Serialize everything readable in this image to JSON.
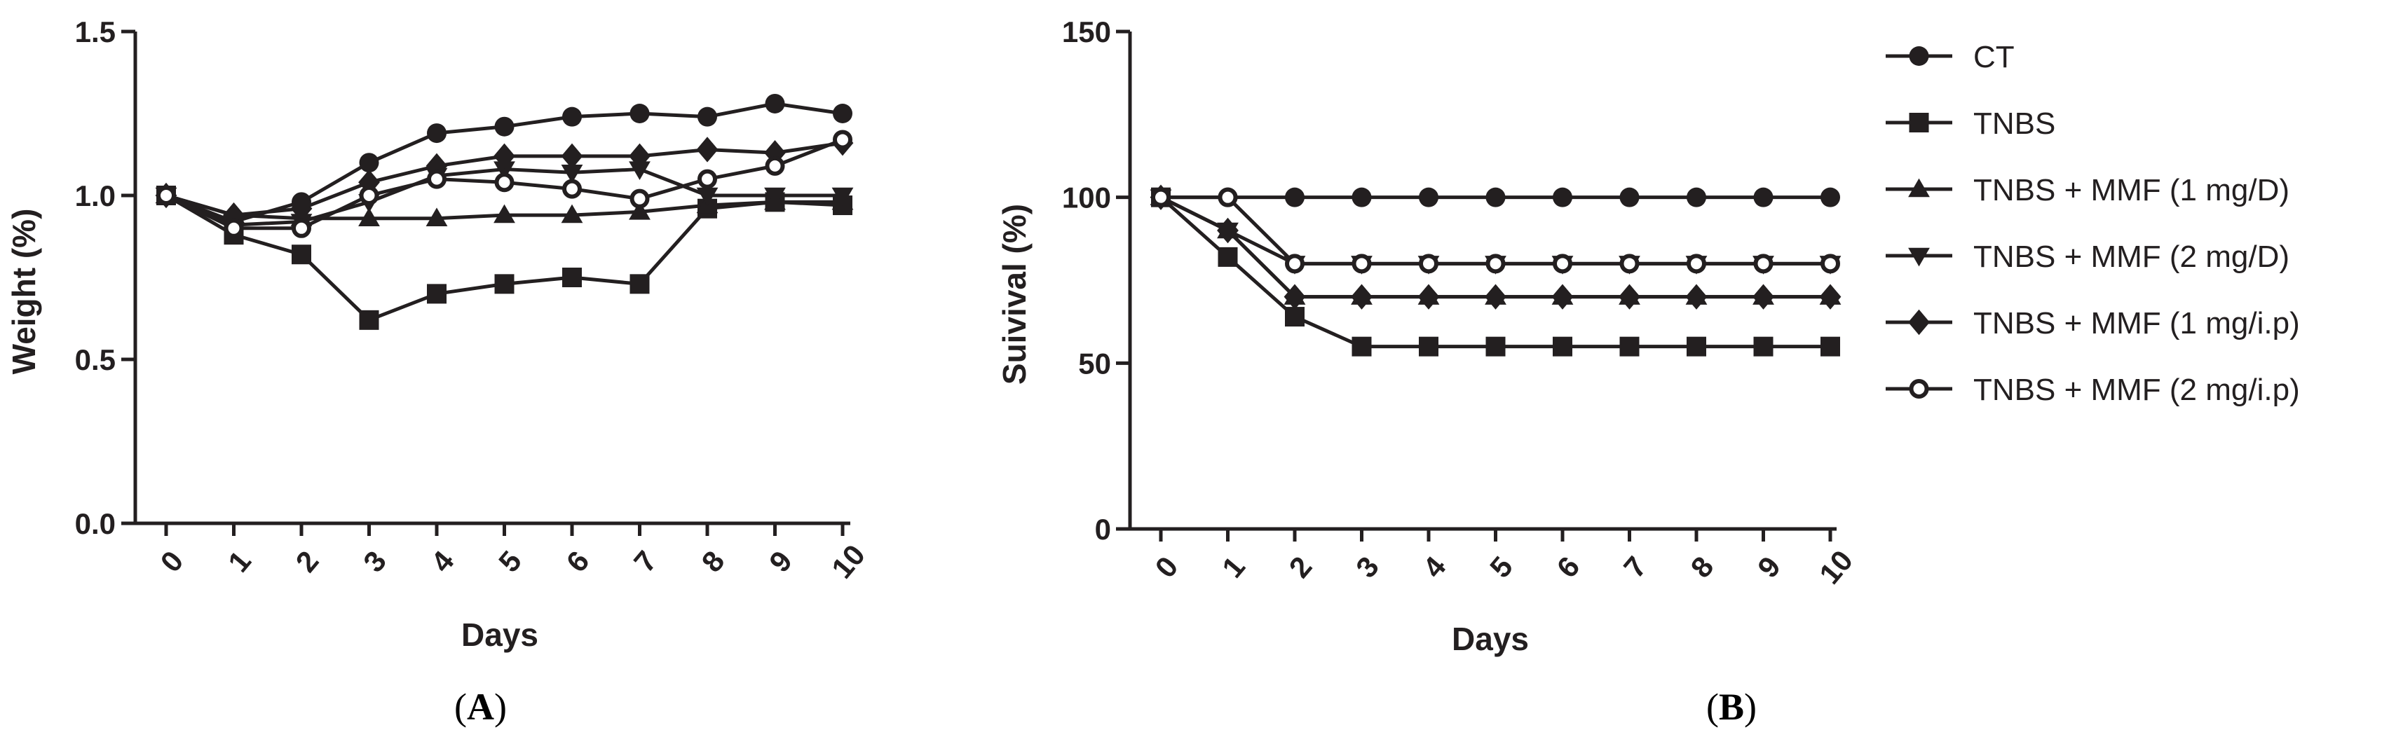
{
  "colors": {
    "ink": "#231f20",
    "background": "#ffffff"
  },
  "chart_data": [
    {
      "type": "line",
      "panel_label": "A",
      "xlabel": "Days",
      "ylabel": "Weight (%)",
      "x": [
        0,
        1,
        2,
        3,
        4,
        5,
        6,
        7,
        8,
        9,
        10
      ],
      "xtick_labels": [
        "0",
        "1",
        "2",
        "3",
        "4",
        "5",
        "6",
        "7",
        "8",
        "9",
        "10"
      ],
      "ylim": [
        0,
        1.5
      ],
      "yticks": [
        0,
        0.5,
        1.0,
        1.5
      ],
      "ytick_labels": [
        "0.0",
        "0.5",
        "1.0",
        "1.5"
      ],
      "grid": false,
      "series": [
        {
          "name": "CT",
          "marker": "circle",
          "values": [
            1.0,
            0.92,
            0.98,
            1.1,
            1.19,
            1.21,
            1.24,
            1.25,
            1.24,
            1.28,
            1.25
          ]
        },
        {
          "name": "TNBS",
          "marker": "square",
          "values": [
            1.0,
            0.88,
            0.82,
            0.62,
            0.7,
            0.73,
            0.75,
            0.73,
            0.96,
            0.98,
            0.97
          ]
        },
        {
          "name": "TNBS + MMF (1 mg/D)",
          "marker": "triangle-up",
          "values": [
            1.0,
            0.94,
            0.93,
            0.93,
            0.93,
            0.94,
            0.94,
            0.95,
            0.97,
            0.98,
            0.98
          ]
        },
        {
          "name": "TNBS + MMF (2 mg/D)",
          "marker": "triangle-down",
          "values": [
            1.0,
            0.91,
            0.92,
            0.98,
            1.06,
            1.08,
            1.07,
            1.08,
            1.0,
            1.0,
            1.0
          ]
        },
        {
          "name": "TNBS + MMF (1 mg/i.p)",
          "marker": "diamond",
          "values": [
            1.0,
            0.94,
            0.96,
            1.04,
            1.09,
            1.12,
            1.12,
            1.12,
            1.14,
            1.13,
            1.16
          ]
        },
        {
          "name": "TNBS + MMF (2 mg/i.p)",
          "marker": "circle-open",
          "values": [
            1.0,
            0.9,
            0.9,
            1.0,
            1.05,
            1.04,
            1.02,
            0.99,
            1.05,
            1.09,
            1.17
          ]
        }
      ]
    },
    {
      "type": "line",
      "panel_label": "B",
      "xlabel": "Days",
      "ylabel": "Suivival (%)",
      "x": [
        0,
        1,
        2,
        3,
        4,
        5,
        6,
        7,
        8,
        9,
        10
      ],
      "xtick_labels": [
        "0",
        "1",
        "2",
        "3",
        "4",
        "5",
        "6",
        "7",
        "8",
        "9",
        "10"
      ],
      "ylim": [
        0,
        150
      ],
      "yticks": [
        0,
        50,
        100,
        150
      ],
      "ytick_labels": [
        "0",
        "50",
        "100",
        "150"
      ],
      "grid": false,
      "legend_position": "right",
      "series": [
        {
          "name": "CT",
          "marker": "circle",
          "values": [
            100,
            100,
            100,
            100,
            100,
            100,
            100,
            100,
            100,
            100,
            100
          ]
        },
        {
          "name": "TNBS",
          "marker": "square",
          "values": [
            100,
            82,
            64,
            55,
            55,
            55,
            55,
            55,
            55,
            55,
            55
          ]
        },
        {
          "name": "TNBS + MMF (1 mg/D)",
          "marker": "triangle-up",
          "values": [
            100,
            90,
            70,
            70,
            70,
            70,
            70,
            70,
            70,
            70,
            70
          ]
        },
        {
          "name": "TNBS + MMF (2 mg/D)",
          "marker": "triangle-down",
          "values": [
            100,
            90,
            80,
            80,
            80,
            80,
            80,
            80,
            80,
            80,
            80
          ]
        },
        {
          "name": "TNBS + MMF (1 mg/i.p)",
          "marker": "diamond",
          "values": [
            100,
            90,
            70,
            70,
            70,
            70,
            70,
            70,
            70,
            70,
            70
          ]
        },
        {
          "name": "TNBS + MMF (2 mg/i.p)",
          "marker": "circle-open",
          "values": [
            100,
            100,
            80,
            80,
            80,
            80,
            80,
            80,
            80,
            80,
            80
          ]
        }
      ]
    }
  ],
  "legend": {
    "entries": [
      {
        "label": "CT",
        "marker": "circle"
      },
      {
        "label": "TNBS",
        "marker": "square"
      },
      {
        "label": "TNBS + MMF (1 mg/D)",
        "marker": "triangle-up"
      },
      {
        "label": "TNBS + MMF (2 mg/D)",
        "marker": "triangle-down"
      },
      {
        "label": "TNBS + MMF (1 mg/i.p)",
        "marker": "diamond"
      },
      {
        "label": "TNBS + MMF (2 mg/i.p)",
        "marker": "circle-open"
      }
    ]
  }
}
